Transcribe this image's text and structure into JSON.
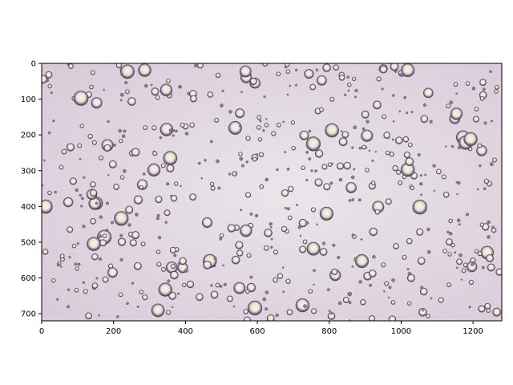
{
  "image": {
    "description_tag": "microscope-bright-field-droplets",
    "background_color": "#ddd2dd",
    "droplet_edge_color": "#4a3a52",
    "droplet_center_color": "#f6f2e4",
    "droplet_count_estimate": 600
  },
  "axes": {
    "x_ticks": [
      "0",
      "200",
      "400",
      "600",
      "800",
      "1000",
      "1200"
    ],
    "y_ticks": [
      "0",
      "100",
      "200",
      "300",
      "400",
      "500",
      "600",
      "700"
    ],
    "x_range": [
      0,
      1280
    ],
    "y_range": [
      0,
      720
    ],
    "y_inverted": true
  }
}
